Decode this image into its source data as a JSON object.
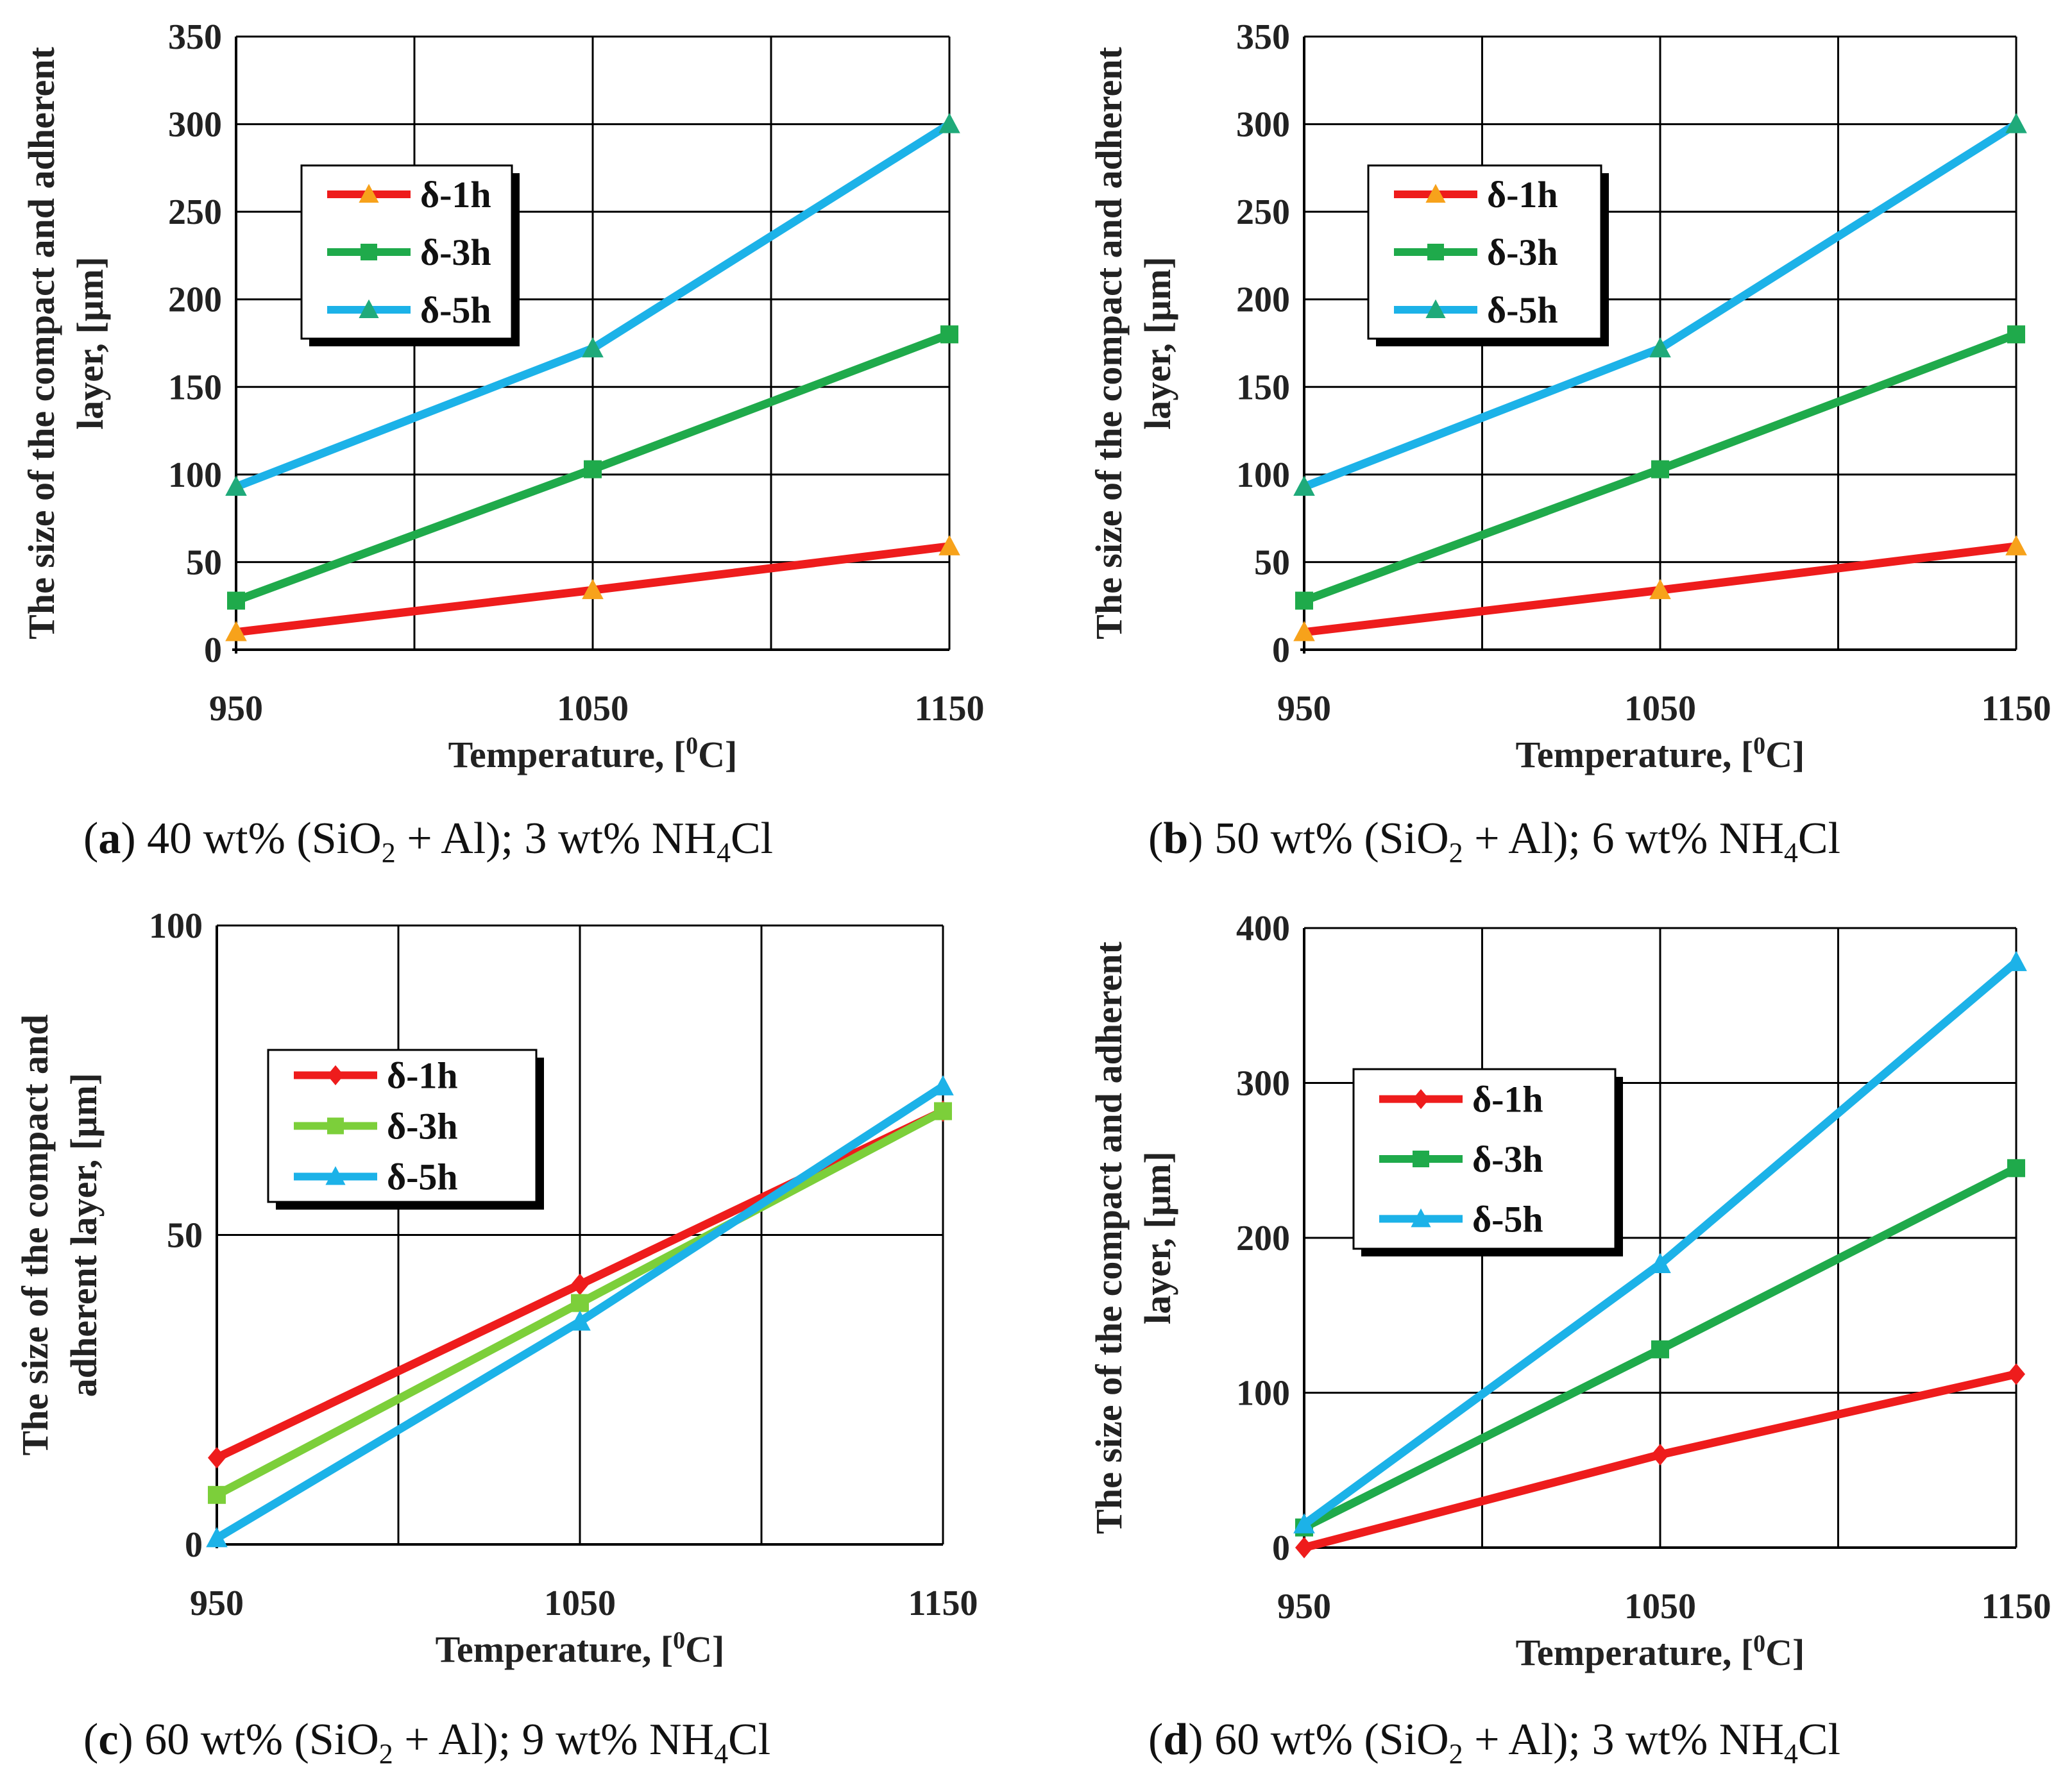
{
  "figure": {
    "panels": [
      {
        "caption": {
          "open": "(",
          "letter": "a",
          "close": ")",
          "pre": " 40 wt% (SiO",
          "sub1": "2",
          "mid": " + Al); 3 wt% NH",
          "sub2": "4",
          "post": "Cl"
        },
        "legend_position": "upper-left"
      },
      {
        "caption": {
          "open": "(",
          "letter": "b",
          "close": ")",
          "pre": " 50 wt% (SiO",
          "sub1": "2",
          "mid": " + Al); 6 wt% NH",
          "sub2": "4",
          "post": "Cl"
        },
        "legend_position": "upper-left"
      },
      {
        "caption": {
          "open": "(",
          "letter": "c",
          "close": ")",
          "pre": " 60 wt% (SiO",
          "sub1": "2",
          "mid": " + Al); 9 wt% NH",
          "sub2": "4",
          "post": "Cl"
        },
        "legend_position": "upper-left"
      },
      {
        "caption": {
          "open": "(",
          "letter": "d",
          "close": ")",
          "pre": " 60 wt% (SiO",
          "sub1": "2",
          "mid": " + Al); 3 wt% NH",
          "sub2": "4",
          "post": "Cl"
        },
        "legend_position": "upper-left"
      }
    ]
  },
  "chart_data": [
    {
      "type": "line",
      "xlabel": "Temperature, [0C]",
      "xlabel_parts": {
        "pre": "Temperature, [",
        "sup": "0",
        "post": "C]"
      },
      "ylabel_lines": [
        "The size of the compact and adherent",
        "layer, [µm]"
      ],
      "x": [
        950,
        1050,
        1150
      ],
      "xlim": [
        950,
        1150
      ],
      "x_gridlines": [
        950,
        1000,
        1050,
        1100,
        1150
      ],
      "x_ticks": [
        950,
        1050,
        1150
      ],
      "ylim": [
        0,
        350
      ],
      "y_ticks": [
        0,
        50,
        100,
        150,
        200,
        250,
        300,
        350
      ],
      "grid": true,
      "series": [
        {
          "name": "δ-1h",
          "values": [
            10,
            34,
            59
          ],
          "color": "#ee1c1c",
          "marker": "triangle",
          "marker_color": "#f7a21b"
        },
        {
          "name": "δ-3h",
          "values": [
            28,
            103,
            180
          ],
          "color": "#1faa4b",
          "marker": "square",
          "marker_color": "#1faa4b"
        },
        {
          "name": "δ-5h",
          "values": [
            93,
            172,
            300
          ],
          "color": "#1cb2e8",
          "marker": "triangle",
          "marker_color": "#1faa7a"
        }
      ]
    },
    {
      "type": "line",
      "xlabel": "Temperature, [0C]",
      "xlabel_parts": {
        "pre": "Temperature, [",
        "sup": "0",
        "post": "C]"
      },
      "ylabel_lines": [
        "The size of the compact and adherent",
        "layer, [µm]"
      ],
      "x": [
        950,
        1050,
        1150
      ],
      "xlim": [
        950,
        1150
      ],
      "x_gridlines": [
        950,
        1000,
        1050,
        1100,
        1150
      ],
      "x_ticks": [
        950,
        1050,
        1150
      ],
      "ylim": [
        0,
        350
      ],
      "y_ticks": [
        0,
        50,
        100,
        150,
        200,
        250,
        300,
        350
      ],
      "grid": true,
      "series": [
        {
          "name": "δ-1h",
          "values": [
            10,
            34,
            59
          ],
          "color": "#ee1c1c",
          "marker": "triangle",
          "marker_color": "#f7a21b"
        },
        {
          "name": "δ-3h",
          "values": [
            28,
            103,
            180
          ],
          "color": "#1faa4b",
          "marker": "square",
          "marker_color": "#1faa4b"
        },
        {
          "name": "δ-5h",
          "values": [
            93,
            172,
            300
          ],
          "color": "#1cb2e8",
          "marker": "triangle",
          "marker_color": "#1faa7a"
        }
      ]
    },
    {
      "type": "line",
      "xlabel": "Temperature, [0C]",
      "xlabel_parts": {
        "pre": "Temperature, [",
        "sup": "0",
        "post": "C]"
      },
      "ylabel_lines": [
        "The size of  the compact and",
        "adherent layer, [µm]"
      ],
      "x": [
        950,
        1050,
        1150
      ],
      "xlim": [
        950,
        1150
      ],
      "x_gridlines": [
        950,
        1000,
        1050,
        1100,
        1150
      ],
      "x_ticks": [
        950,
        1050,
        1150
      ],
      "ylim": [
        0,
        100
      ],
      "y_ticks": [
        0,
        50,
        100
      ],
      "grid": true,
      "series": [
        {
          "name": "δ-1h",
          "values": [
            14,
            42,
            70
          ],
          "color": "#ee1c1c",
          "marker": "diamond",
          "marker_color": "#ee1c1c"
        },
        {
          "name": "δ-3h",
          "values": [
            8,
            39,
            70
          ],
          "color": "#7ccf3a",
          "marker": "square",
          "marker_color": "#7ccf3a"
        },
        {
          "name": "δ-5h",
          "values": [
            1,
            36,
            74
          ],
          "color": "#1cb2e8",
          "marker": "triangle",
          "marker_color": "#1cb2e8"
        }
      ]
    },
    {
      "type": "line",
      "xlabel": "Temperature, [0C]",
      "xlabel_parts": {
        "pre": "Temperature, [",
        "sup": "0",
        "post": "C]"
      },
      "ylabel_lines": [
        "The size of the compact and adherent",
        "layer, [µm]"
      ],
      "x": [
        950,
        1050,
        1150
      ],
      "xlim": [
        950,
        1150
      ],
      "x_gridlines": [
        950,
        1000,
        1050,
        1100,
        1150
      ],
      "x_ticks": [
        950,
        1050,
        1150
      ],
      "ylim": [
        0,
        400
      ],
      "y_ticks": [
        0,
        100,
        200,
        300,
        400
      ],
      "grid": true,
      "series": [
        {
          "name": "δ-1h",
          "values": [
            0,
            60,
            112
          ],
          "color": "#ee1c1c",
          "marker": "diamond",
          "marker_color": "#ee1c1c"
        },
        {
          "name": "δ-3h",
          "values": [
            13,
            128,
            245
          ],
          "color": "#1faa4b",
          "marker": "square",
          "marker_color": "#1faa4b"
        },
        {
          "name": "δ-5h",
          "values": [
            15,
            183,
            378
          ],
          "color": "#1cb2e8",
          "marker": "triangle",
          "marker_color": "#1cb2e8"
        }
      ]
    }
  ]
}
